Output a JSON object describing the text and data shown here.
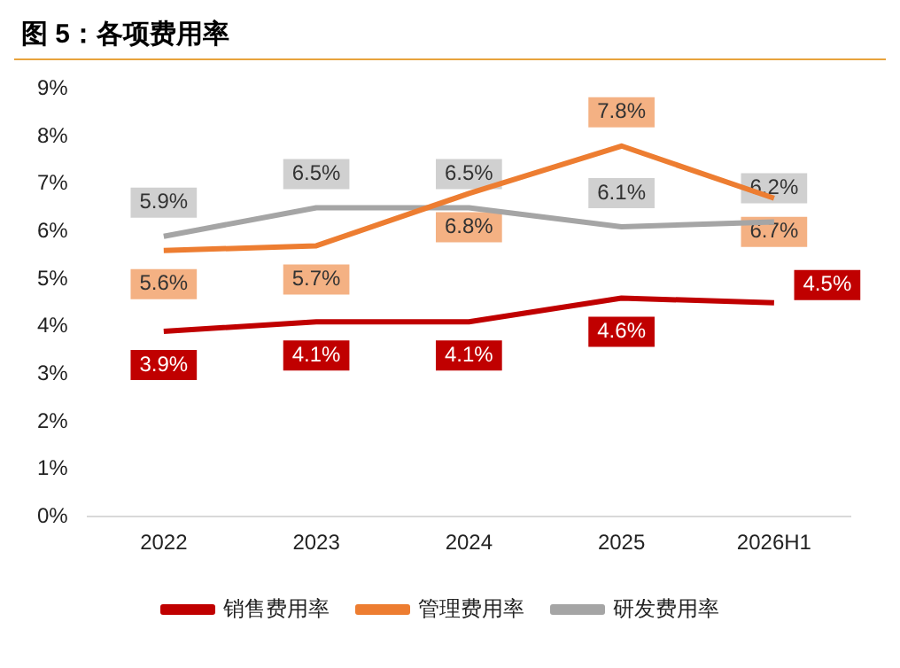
{
  "chart_data": {
    "type": "line",
    "title": "图 5：各项费用率",
    "categories": [
      "2022",
      "2023",
      "2024",
      "2025",
      "2026H1"
    ],
    "series": [
      {
        "name": "销售费用率",
        "color": "#c00000",
        "values": [
          3.9,
          4.1,
          4.1,
          4.6,
          4.5
        ],
        "value_labels": [
          "3.9%",
          "4.1%",
          "4.1%",
          "4.6%",
          "4.5%"
        ]
      },
      {
        "name": "管理费用率",
        "color": "#ed7d31",
        "values": [
          5.6,
          5.7,
          6.8,
          7.8,
          6.7
        ],
        "value_labels": [
          "5.6%",
          "5.7%",
          "6.8%",
          "7.8%",
          "6.7%"
        ]
      },
      {
        "name": "研发费用率",
        "color": "#a5a5a5",
        "values": [
          5.9,
          6.5,
          6.5,
          6.1,
          6.2
        ],
        "value_labels": [
          "5.9%",
          "6.5%",
          "6.5%",
          "6.1%",
          "6.2%"
        ]
      }
    ],
    "ylim": [
      0,
      9
    ],
    "yticks": [
      {
        "value": 0,
        "label": "0%"
      },
      {
        "value": 1,
        "label": "1%"
      },
      {
        "value": 2,
        "label": "2%"
      },
      {
        "value": 3,
        "label": "3%"
      },
      {
        "value": 4,
        "label": "4%"
      },
      {
        "value": 5,
        "label": "5%"
      },
      {
        "value": 6,
        "label": "6%"
      },
      {
        "value": 7,
        "label": "7%"
      },
      {
        "value": 8,
        "label": "8%"
      },
      {
        "value": 9,
        "label": "9%"
      }
    ],
    "grid": false,
    "legend": "bottom",
    "marker": "none",
    "line_style": "solid"
  }
}
